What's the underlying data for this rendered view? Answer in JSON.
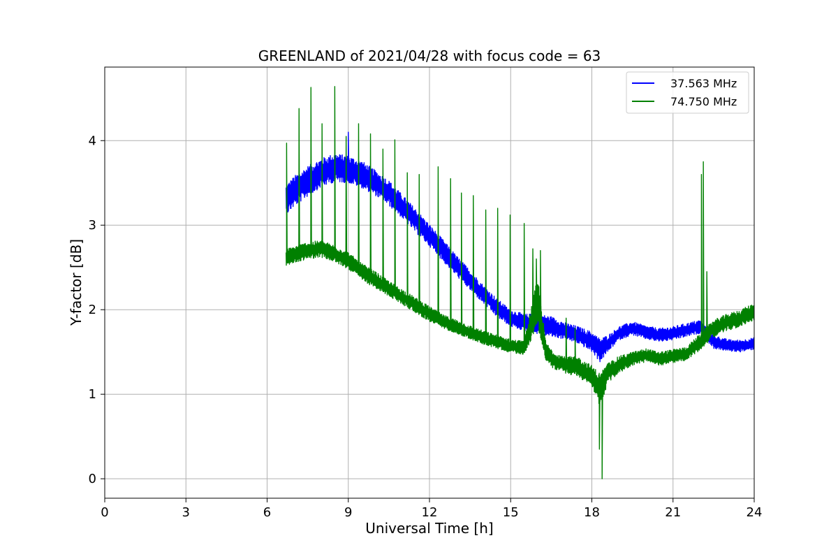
{
  "chart_data": {
    "type": "line",
    "title": "GREENLAND of 2021/04/28 with focus code = 63",
    "xlabel": "Universal Time [h]",
    "ylabel": "Y-factor [dB]",
    "xlim": [
      0,
      24
    ],
    "ylim": [
      -0.23,
      4.87
    ],
    "xticks": [
      0,
      3,
      6,
      9,
      12,
      15,
      18,
      21,
      24
    ],
    "yticks": [
      0,
      1,
      2,
      3,
      4
    ],
    "grid": true,
    "legend_position": "top-right",
    "series": [
      {
        "name": "37.563 MHz",
        "color": "#0000ff",
        "x": [
          6.7,
          7.0,
          7.5,
          8.0,
          8.5,
          9.0,
          9.5,
          10.0,
          10.5,
          11.0,
          11.5,
          12.0,
          12.5,
          13.0,
          13.5,
          14.0,
          14.5,
          15.0,
          15.5,
          16.0,
          16.5,
          17.0,
          17.5,
          18.0,
          18.3,
          18.6,
          19.0,
          19.5,
          20.0,
          20.5,
          21.0,
          21.5,
          22.0,
          22.5,
          23.0,
          23.5,
          24.0
        ],
        "y": [
          3.3,
          3.4,
          3.52,
          3.62,
          3.68,
          3.66,
          3.6,
          3.5,
          3.38,
          3.22,
          3.05,
          2.88,
          2.7,
          2.52,
          2.35,
          2.18,
          2.02,
          1.9,
          1.85,
          1.83,
          1.8,
          1.75,
          1.7,
          1.62,
          1.52,
          1.6,
          1.72,
          1.78,
          1.73,
          1.7,
          1.72,
          1.76,
          1.8,
          1.62,
          1.58,
          1.57,
          1.6
        ],
        "amplitude": [
          0.18,
          0.18,
          0.18,
          0.17,
          0.17,
          0.16,
          0.16,
          0.15,
          0.15,
          0.14,
          0.14,
          0.13,
          0.13,
          0.12,
          0.12,
          0.11,
          0.11,
          0.1,
          0.1,
          0.12,
          0.12,
          0.1,
          0.1,
          0.12,
          0.14,
          0.1,
          0.08,
          0.08,
          0.08,
          0.08,
          0.08,
          0.08,
          0.08,
          0.08,
          0.07,
          0.07,
          0.07
        ],
        "spikes": [
          {
            "x": 9.0,
            "y": 4.1
          }
        ]
      },
      {
        "name": "74.750 MHz",
        "color": "#008000",
        "x": [
          6.7,
          7.0,
          7.5,
          8.0,
          8.5,
          9.0,
          9.5,
          10.0,
          10.5,
          11.0,
          11.5,
          12.0,
          12.5,
          13.0,
          13.5,
          14.0,
          14.5,
          15.0,
          15.5,
          16.0,
          16.3,
          16.6,
          17.0,
          17.5,
          18.0,
          18.3,
          18.6,
          19.0,
          19.5,
          20.0,
          20.5,
          21.0,
          21.5,
          22.0,
          22.5,
          23.0,
          23.5,
          24.0
        ],
        "y": [
          2.62,
          2.65,
          2.7,
          2.72,
          2.66,
          2.58,
          2.45,
          2.35,
          2.25,
          2.15,
          2.05,
          1.95,
          1.86,
          1.8,
          1.73,
          1.67,
          1.62,
          1.57,
          1.55,
          2.1,
          1.5,
          1.4,
          1.35,
          1.32,
          1.22,
          1.05,
          1.25,
          1.35,
          1.42,
          1.46,
          1.42,
          1.45,
          1.48,
          1.62,
          1.78,
          1.85,
          1.9,
          1.98
        ],
        "amplitude": [
          0.1,
          0.1,
          0.1,
          0.1,
          0.1,
          0.1,
          0.1,
          0.1,
          0.09,
          0.09,
          0.09,
          0.09,
          0.08,
          0.08,
          0.08,
          0.08,
          0.08,
          0.08,
          0.08,
          0.3,
          0.12,
          0.1,
          0.1,
          0.12,
          0.12,
          0.2,
          0.12,
          0.1,
          0.08,
          0.08,
          0.08,
          0.08,
          0.08,
          0.1,
          0.1,
          0.1,
          0.1,
          0.1
        ],
        "spikes": [
          {
            "x": 6.72,
            "y": 3.97
          },
          {
            "x": 7.18,
            "y": 4.38
          },
          {
            "x": 7.62,
            "y": 4.63
          },
          {
            "x": 8.03,
            "y": 4.2
          },
          {
            "x": 8.5,
            "y": 4.64
          },
          {
            "x": 8.92,
            "y": 4.05
          },
          {
            "x": 9.38,
            "y": 4.2
          },
          {
            "x": 9.82,
            "y": 4.08
          },
          {
            "x": 10.28,
            "y": 3.9
          },
          {
            "x": 10.72,
            "y": 4.01
          },
          {
            "x": 11.18,
            "y": 3.62
          },
          {
            "x": 11.62,
            "y": 3.6
          },
          {
            "x": 12.32,
            "y": 3.69
          },
          {
            "x": 12.78,
            "y": 3.55
          },
          {
            "x": 13.18,
            "y": 3.38
          },
          {
            "x": 13.62,
            "y": 3.35
          },
          {
            "x": 14.08,
            "y": 3.18
          },
          {
            "x": 14.52,
            "y": 3.2
          },
          {
            "x": 14.98,
            "y": 3.12
          },
          {
            "x": 15.5,
            "y": 3.02
          },
          {
            "x": 15.82,
            "y": 2.72
          },
          {
            "x": 15.95,
            "y": 2.6
          },
          {
            "x": 16.1,
            "y": 2.7
          },
          {
            "x": 17.05,
            "y": 1.9
          },
          {
            "x": 17.38,
            "y": 1.78
          },
          {
            "x": 18.28,
            "y": 0.35
          },
          {
            "x": 18.38,
            "y": 0.0
          },
          {
            "x": 22.05,
            "y": 3.6
          },
          {
            "x": 22.12,
            "y": 3.75
          },
          {
            "x": 22.25,
            "y": 2.45
          }
        ]
      }
    ]
  }
}
